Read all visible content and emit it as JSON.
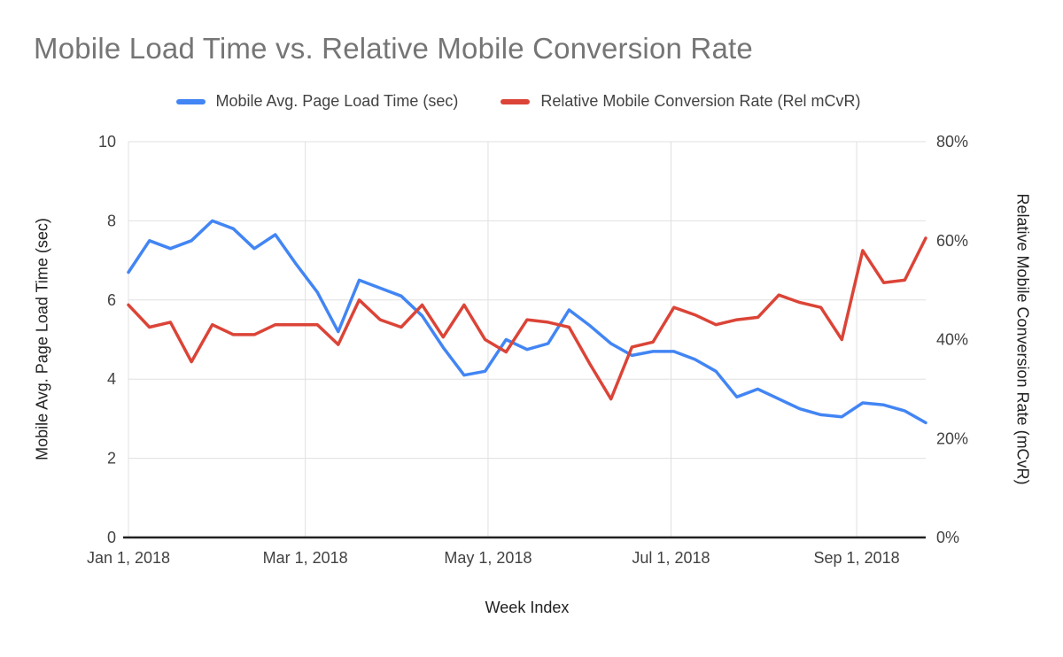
{
  "title": "Mobile Load Time vs. Relative Mobile Conversion Rate",
  "legend": [
    {
      "label": "Mobile Avg. Page Load Time (sec)",
      "color": "#4285f4"
    },
    {
      "label": "Relative Mobile Conversion Rate (Rel mCvR)",
      "color": "#db4437"
    }
  ],
  "colors": {
    "blue_series": "#4285f4",
    "red_series": "#db4437",
    "gridline": "#e0e0e0",
    "axis_line": "#212121",
    "title_text": "#757575",
    "tick_text": "#424242"
  },
  "chart_data": {
    "type": "line",
    "title": "Mobile Load Time vs. Relative Mobile Conversion Rate",
    "xlabel": "Week Index",
    "ylabel_left": "Mobile Avg. Page Load Time (sec)",
    "ylabel_right": "Relative Mobile Conversion Rate (mCvR)",
    "grid": true,
    "legend_position": "top",
    "x_unit": "weeks since Jan 1, 2018",
    "x_max_week": 38,
    "x_tick_weeks": [
      0,
      8.43,
      17.14,
      25.86,
      34.71
    ],
    "x_tick_labels": [
      "Jan 1, 2018",
      "Mar 1, 2018",
      "May 1, 2018",
      "Jul 1, 2018",
      "Sep 1, 2018"
    ],
    "left_axis": {
      "min": 0,
      "max": 10,
      "tick_values": [
        0,
        2,
        4,
        6,
        8,
        10
      ],
      "tick_labels": [
        "0",
        "2",
        "4",
        "6",
        "8",
        "10"
      ]
    },
    "right_axis": {
      "min": 0,
      "max": 80,
      "tick_values": [
        0,
        20,
        40,
        60,
        80
      ],
      "tick_labels": [
        "0%",
        "20%",
        "40%",
        "60%",
        "80%"
      ]
    },
    "series": [
      {
        "name": "Mobile Avg. Page Load Time (sec)",
        "axis": "left",
        "color": "#4285f4",
        "values": [
          6.7,
          7.5,
          7.3,
          7.5,
          8.0,
          7.8,
          7.3,
          7.65,
          6.9,
          6.2,
          5.2,
          6.5,
          6.3,
          6.1,
          5.6,
          4.8,
          4.1,
          4.2,
          5.0,
          4.75,
          4.9,
          5.75,
          5.35,
          4.9,
          4.6,
          4.7,
          4.7,
          4.5,
          4.2,
          3.55,
          3.75,
          3.5,
          3.25,
          3.1,
          3.05,
          3.4,
          3.35,
          3.2,
          2.9
        ]
      },
      {
        "name": "Relative Mobile Conversion Rate (Rel mCvR)",
        "axis": "right",
        "color": "#db4437",
        "values": [
          47,
          42.5,
          43.5,
          35.5,
          43,
          41,
          41,
          43,
          43,
          43,
          39,
          48,
          44,
          42.5,
          47,
          40.5,
          47,
          40,
          37.5,
          44,
          43.5,
          42.5,
          35,
          28,
          38.5,
          39.5,
          46.5,
          45,
          43,
          44,
          44.5,
          49,
          47.5,
          46.5,
          40,
          58,
          51.5,
          52,
          60.5
        ]
      }
    ]
  }
}
